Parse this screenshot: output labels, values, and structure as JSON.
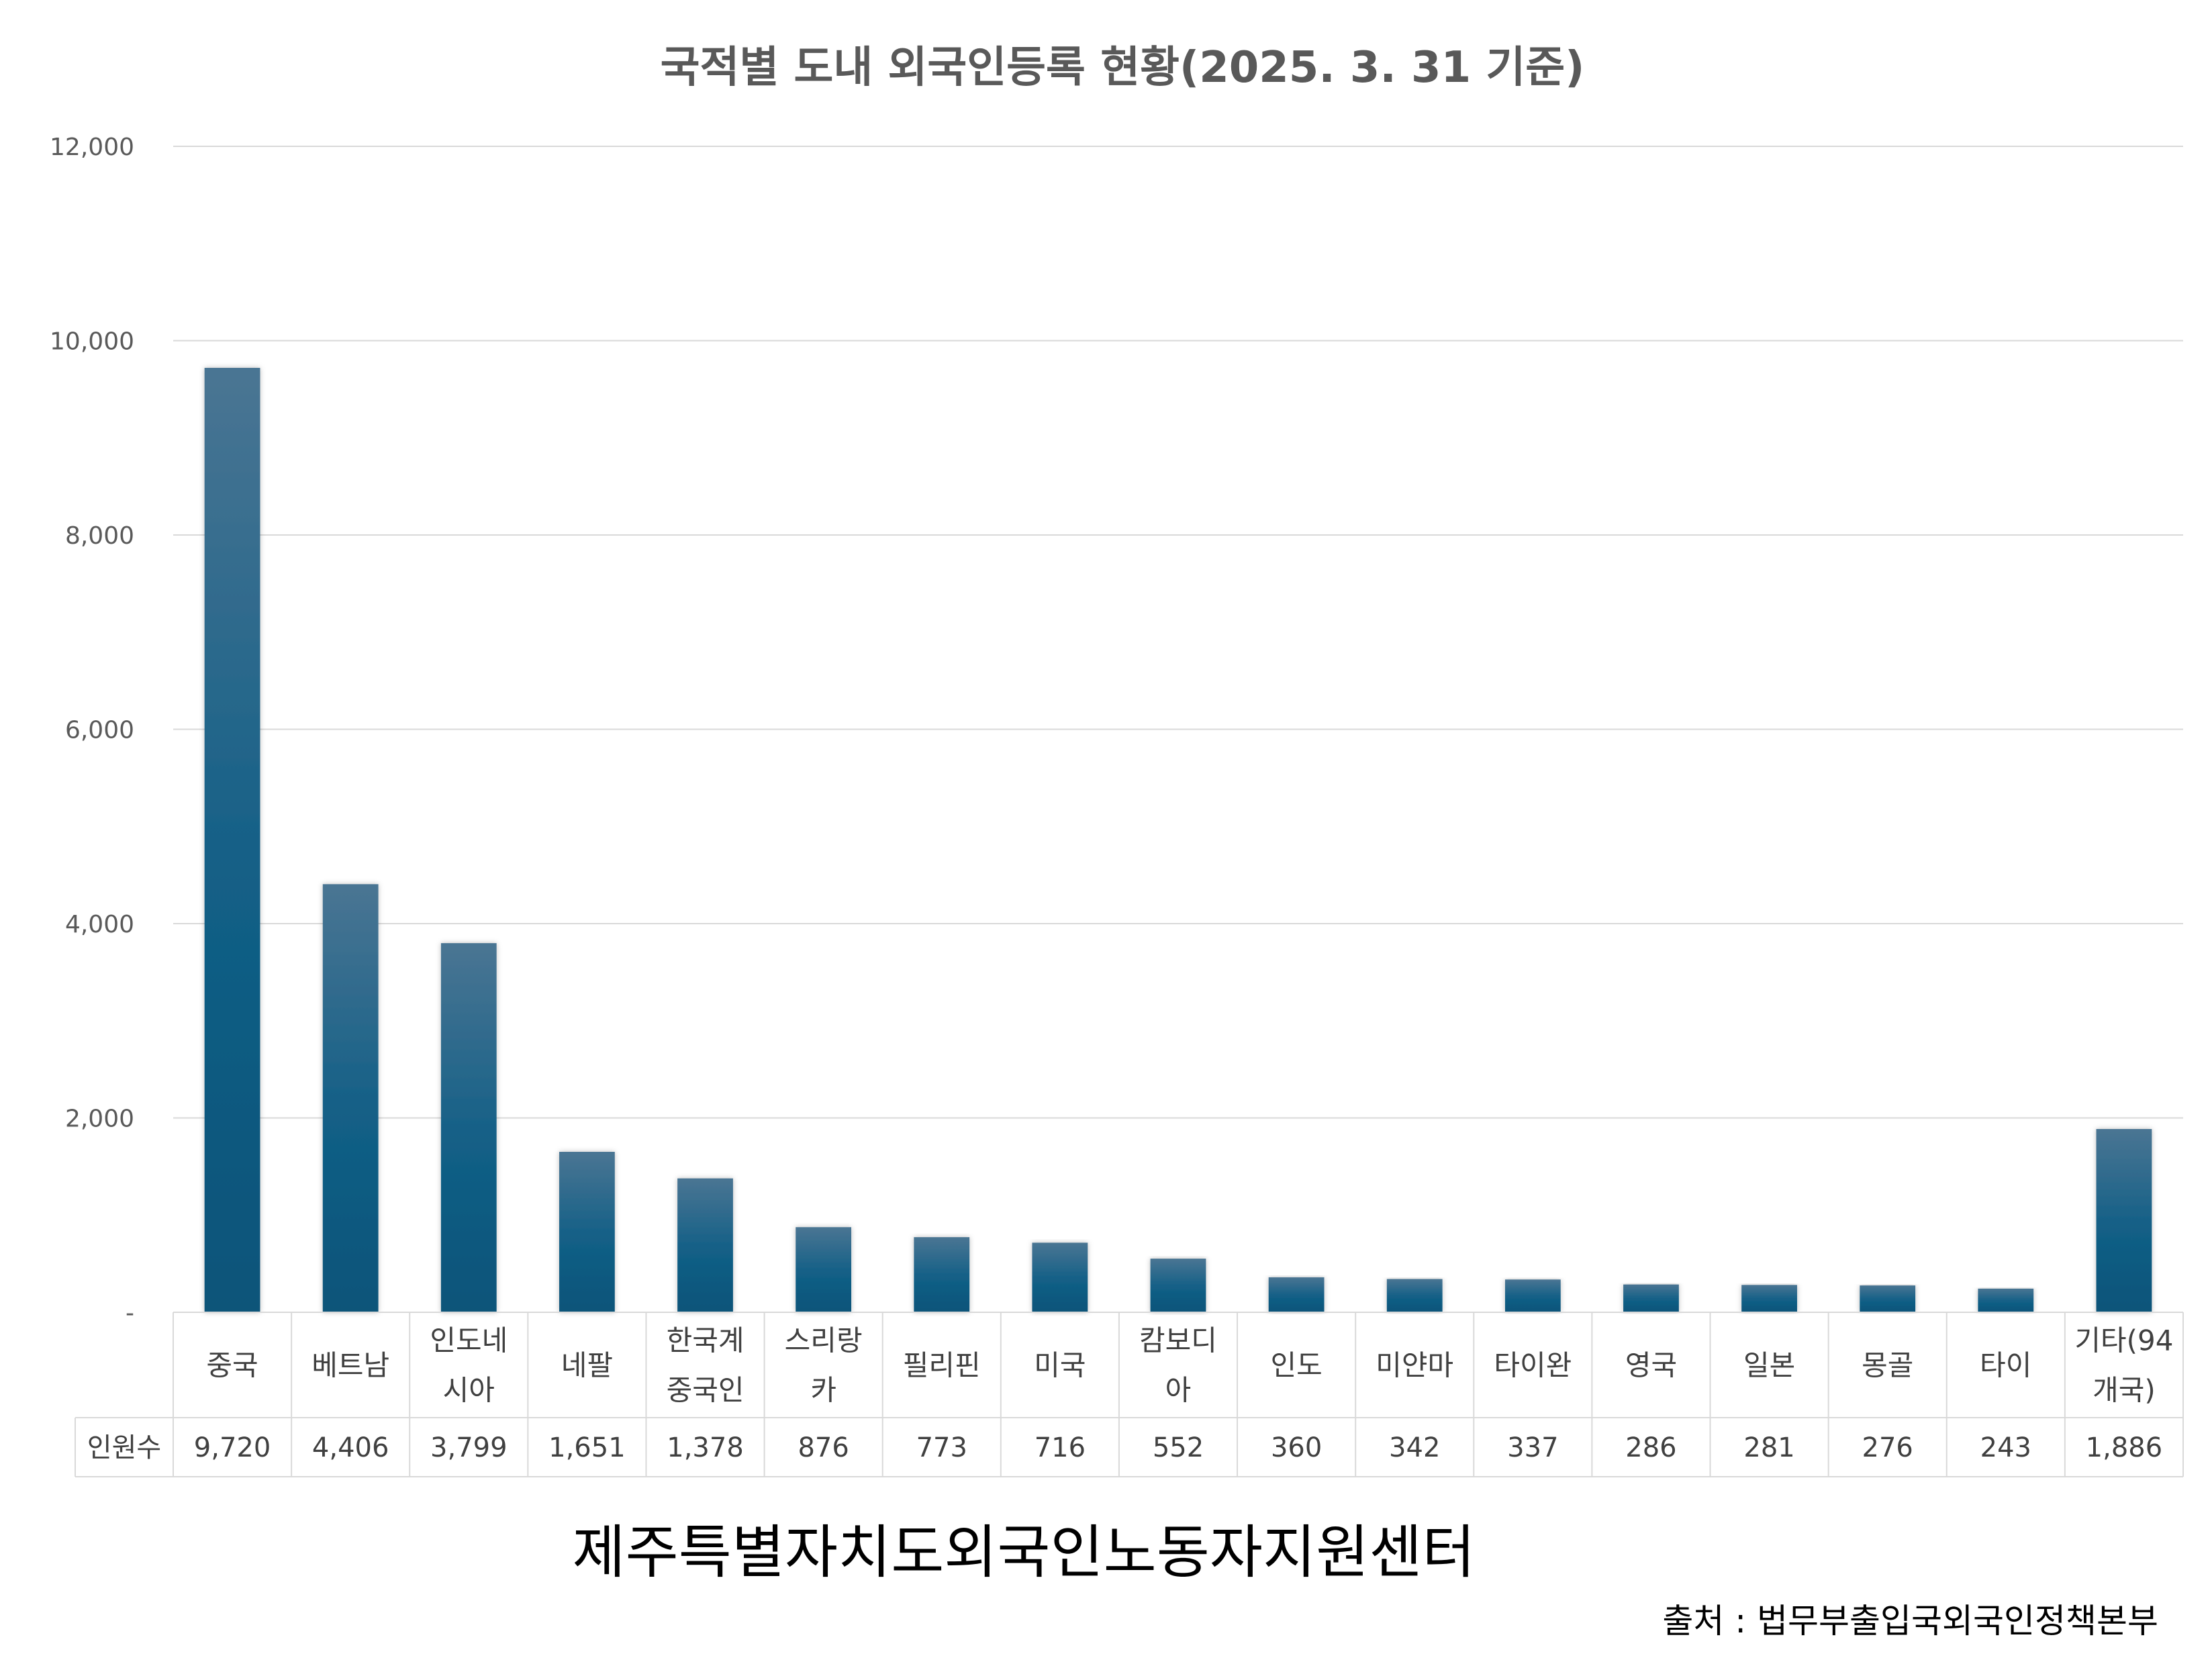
{
  "chart_data": {
    "type": "bar",
    "title": "국적별 도내 외국인등록 현황(2025. 3. 31 기준)",
    "categories": [
      [
        "중국"
      ],
      [
        "베트남"
      ],
      [
        "인도네",
        "시아"
      ],
      [
        "네팔"
      ],
      [
        "한국계",
        "중국인"
      ],
      [
        "스리랑",
        "카"
      ],
      [
        "필리핀"
      ],
      [
        "미국"
      ],
      [
        "캄보디",
        "아"
      ],
      [
        "인도"
      ],
      [
        "미얀마"
      ],
      [
        "타이완"
      ],
      [
        "영국"
      ],
      [
        "일본"
      ],
      [
        "몽골"
      ],
      [
        "타이"
      ],
      [
        "기타(94",
        "개국)"
      ]
    ],
    "series": [
      {
        "name": "인원수",
        "values": [
          9720,
          4406,
          3799,
          1651,
          1378,
          876,
          773,
          716,
          552,
          360,
          342,
          337,
          286,
          281,
          276,
          243,
          1886
        ],
        "labels": [
          "9,720",
          "4,406",
          "3,799",
          "1,651",
          "1,378",
          "876",
          "773",
          "716",
          "552",
          "360",
          "342",
          "337",
          "286",
          "281",
          "276",
          "243",
          "1,886"
        ]
      }
    ],
    "ylim": [
      0,
      12000
    ],
    "yticks": [
      0,
      2000,
      4000,
      6000,
      8000,
      10000,
      12000
    ],
    "ytick_labels": [
      "-",
      "2,000",
      "4,000",
      "6,000",
      "8,000",
      "10,000",
      "12,000"
    ],
    "grid": true,
    "legend": "data-table",
    "colors": {
      "bar_top": "#4a7593",
      "bar_bottom": "#0b5479",
      "grid": "#d9d9d9",
      "text": "#595959"
    }
  },
  "organization": "제주특별자치도외국인노동자지원센터",
  "source": "출처 : 법무부출입국외국인정책본부"
}
